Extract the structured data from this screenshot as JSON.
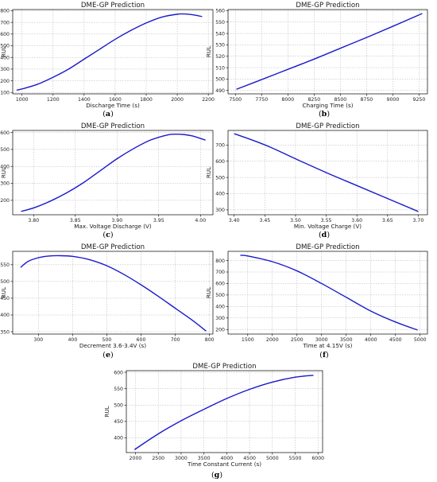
{
  "colors": {
    "curve": "#1a1acc",
    "grid": "#b0b0b0",
    "axis": "#000000"
  },
  "chart_data": [
    {
      "type": "line",
      "panel": "a",
      "title": "DME-GP Prediction",
      "xlabel": "Discharge Time (s)",
      "ylabel": "RUL",
      "xlim": [
        940,
        2230
      ],
      "ylim": [
        88,
        810
      ],
      "xticks": [
        1000,
        1200,
        1400,
        1600,
        1800,
        2000,
        2200
      ],
      "yticks": [
        100,
        200,
        300,
        400,
        500,
        600,
        700,
        800
      ],
      "grid": true,
      "series": [
        {
          "x": [
            965,
            1000,
            1100,
            1200,
            1300,
            1400,
            1500,
            1600,
            1700,
            1800,
            1900,
            2000,
            2050,
            2100,
            2160
          ],
          "y": [
            120,
            130,
            170,
            230,
            300,
            385,
            470,
            555,
            630,
            695,
            745,
            770,
            772,
            765,
            750
          ]
        }
      ]
    },
    {
      "type": "line",
      "panel": "b",
      "title": "DME-GP Prediction",
      "xlabel": "Charging Time (s)",
      "ylabel": "RUL",
      "xlim": [
        7430,
        9330
      ],
      "ylim": [
        487,
        561
      ],
      "xticks": [
        7500,
        7750,
        8000,
        8250,
        8500,
        8750,
        9000,
        9250
      ],
      "yticks": [
        490,
        500,
        510,
        520,
        530,
        540,
        550,
        560
      ],
      "grid": true,
      "series": [
        {
          "x": [
            7510,
            7750,
            8000,
            8250,
            8500,
            8750,
            9000,
            9280
          ],
          "y": [
            491,
            499.5,
            508.5,
            517.5,
            527,
            536.5,
            546.3,
            557.5
          ]
        }
      ]
    },
    {
      "type": "line",
      "panel": "c",
      "title": "DME-GP Prediction",
      "xlabel": "Max. Voltage Discharge (V)",
      "ylabel": "RUL",
      "xlim": [
        3.775,
        4.015
      ],
      "ylim": [
        115,
        612
      ],
      "xticks": [
        3.8,
        3.85,
        3.9,
        3.95,
        4.0
      ],
      "yticks": [
        200,
        300,
        400,
        500,
        600
      ],
      "grid": true,
      "series": [
        {
          "x": [
            3.785,
            3.8,
            3.82,
            3.84,
            3.86,
            3.88,
            3.9,
            3.92,
            3.94,
            3.96,
            3.97,
            3.98,
            3.99,
            4.0,
            4.006
          ],
          "y": [
            135,
            155,
            195,
            245,
            305,
            375,
            445,
            505,
            555,
            585,
            590,
            588,
            580,
            565,
            555
          ]
        }
      ]
    },
    {
      "type": "line",
      "panel": "d",
      "title": "DME-GP Prediction",
      "xlabel": "Min. Voltage Charge (V)",
      "ylabel": "RUL",
      "xlim": [
        3.39,
        3.715
      ],
      "ylim": [
        270,
        790
      ],
      "xticks": [
        3.4,
        3.45,
        3.5,
        3.55,
        3.6,
        3.65,
        3.7
      ],
      "yticks": [
        300,
        400,
        500,
        600,
        700
      ],
      "grid": true,
      "series": [
        {
          "x": [
            3.4,
            3.43,
            3.46,
            3.5,
            3.55,
            3.6,
            3.65,
            3.7
          ],
          "y": [
            770,
            730,
            685,
            615,
            530,
            450,
            370,
            290
          ]
        }
      ]
    },
    {
      "type": "line",
      "panel": "e",
      "title": "DME-GP Prediction",
      "xlabel": "Decrement 3.6-3.4V (s)",
      "ylabel": "RUL",
      "xlim": [
        225,
        810
      ],
      "ylim": [
        343,
        590
      ],
      "xticks": [
        300,
        400,
        500,
        600,
        700,
        800
      ],
      "yticks": [
        350,
        400,
        450,
        500,
        550
      ],
      "grid": true,
      "series": [
        {
          "x": [
            248,
            270,
            300,
            330,
            360,
            400,
            450,
            500,
            550,
            600,
            650,
            700,
            750,
            790
          ],
          "y": [
            542,
            560,
            571,
            576,
            577,
            575,
            565,
            547,
            521,
            490,
            456,
            420,
            384,
            352
          ]
        }
      ]
    },
    {
      "type": "line",
      "panel": "f",
      "title": "DME-GP Prediction",
      "xlabel": "Time at 4.15V (s)",
      "ylabel": "RUL",
      "xlim": [
        1100,
        5150
      ],
      "ylim": [
        160,
        880
      ],
      "xticks": [
        1500,
        2000,
        2500,
        3000,
        3500,
        4000,
        4500,
        5000
      ],
      "yticks": [
        200,
        300,
        400,
        500,
        600,
        700,
        800
      ],
      "grid": true,
      "series": [
        {
          "x": [
            1350,
            1500,
            2000,
            2500,
            3000,
            3500,
            4000,
            4500,
            4950
          ],
          "y": [
            845,
            840,
            790,
            710,
            600,
            480,
            360,
            265,
            195
          ]
        }
      ]
    },
    {
      "type": "line",
      "panel": "g",
      "title": "DME-GP Prediction",
      "xlabel": "Time Constant Current (s)",
      "ylabel": "RUL",
      "xlim": [
        1800,
        6100
      ],
      "ylim": [
        355,
        605
      ],
      "xticks": [
        2000,
        2500,
        3000,
        3500,
        4000,
        4500,
        5000,
        5500,
        6000
      ],
      "yticks": [
        400,
        450,
        500,
        550,
        600
      ],
      "grid": true,
      "series": [
        {
          "x": [
            1980,
            2500,
            3000,
            3500,
            4000,
            4500,
            5000,
            5500,
            5900
          ],
          "y": [
            364,
            412,
            452,
            487,
            520,
            548,
            570,
            585,
            591
          ]
        }
      ]
    }
  ],
  "panel_labels": [
    "(a)",
    "(b)",
    "(c)",
    "(d)",
    "(e)",
    "(f)",
    "(g)"
  ]
}
